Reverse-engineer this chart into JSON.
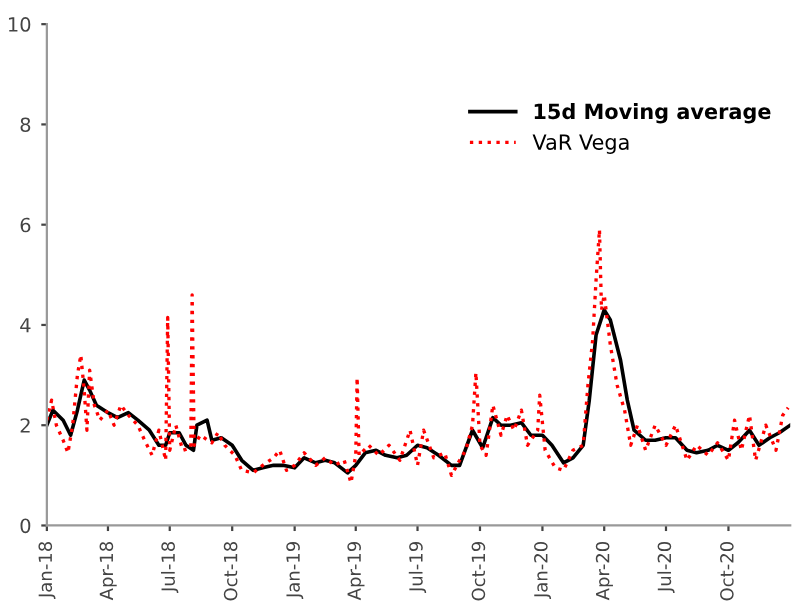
{
  "chart_data": {
    "type": "line",
    "xlim": [
      "2018-01-01",
      "2020-12-31"
    ],
    "xticks": [
      {
        "value": "2018-01-01",
        "label": "Jan-18"
      },
      {
        "value": "2018-04-01",
        "label": "Apr-18"
      },
      {
        "value": "2018-07-01",
        "label": "Jul-18"
      },
      {
        "value": "2018-10-01",
        "label": "Oct-18"
      },
      {
        "value": "2019-01-01",
        "label": "Jan-19"
      },
      {
        "value": "2019-04-01",
        "label": "Apr-19"
      },
      {
        "value": "2019-07-01",
        "label": "Jul-19"
      },
      {
        "value": "2019-10-01",
        "label": "Oct-19"
      },
      {
        "value": "2020-01-01",
        "label": "Jan-20"
      },
      {
        "value": "2020-04-01",
        "label": "Apr-20"
      },
      {
        "value": "2020-07-01",
        "label": "Jul-20"
      },
      {
        "value": "2020-10-01",
        "label": "Oct-20"
      }
    ],
    "ylim": [
      0,
      10
    ],
    "yticks": [
      0,
      2,
      4,
      6,
      8,
      10
    ],
    "grid": false,
    "legend": "top right",
    "series": [
      {
        "name": "15d Moving average",
        "color": "#000000",
        "line_style": "solid",
        "x": [
          "2018-01-01",
          "2018-01-10",
          "2018-01-25",
          "2018-02-05",
          "2018-02-15",
          "2018-02-25",
          "2018-03-05",
          "2018-03-15",
          "2018-04-01",
          "2018-04-15",
          "2018-05-01",
          "2018-05-15",
          "2018-06-01",
          "2018-06-15",
          "2018-06-25",
          "2018-07-01",
          "2018-07-15",
          "2018-07-25",
          "2018-08-05",
          "2018-08-10",
          "2018-08-25",
          "2018-09-01",
          "2018-09-15",
          "2018-10-01",
          "2018-10-15",
          "2018-11-01",
          "2018-11-15",
          "2018-12-01",
          "2018-12-15",
          "2019-01-01",
          "2019-01-15",
          "2019-02-01",
          "2019-02-15",
          "2019-03-01",
          "2019-03-20",
          "2019-04-01",
          "2019-04-15",
          "2019-05-01",
          "2019-05-15",
          "2019-06-01",
          "2019-06-15",
          "2019-07-01",
          "2019-07-15",
          "2019-08-01",
          "2019-08-20",
          "2019-09-01",
          "2019-09-20",
          "2019-10-05",
          "2019-10-20",
          "2019-11-01",
          "2019-11-15",
          "2019-12-01",
          "2019-12-15",
          "2020-01-01",
          "2020-01-15",
          "2020-02-01",
          "2020-02-15",
          "2020-03-01",
          "2020-03-10",
          "2020-03-20",
          "2020-04-01",
          "2020-04-10",
          "2020-04-25",
          "2020-05-05",
          "2020-05-15",
          "2020-06-01",
          "2020-06-15",
          "2020-07-01",
          "2020-07-15",
          "2020-08-01",
          "2020-08-15",
          "2020-09-01",
          "2020-09-15",
          "2020-10-01",
          "2020-10-15",
          "2020-11-01",
          "2020-11-15",
          "2020-12-01",
          "2020-12-15",
          "2020-12-31"
        ],
        "values": [
          2.0,
          2.3,
          2.1,
          1.8,
          2.3,
          2.9,
          2.7,
          2.4,
          2.25,
          2.15,
          2.25,
          2.1,
          1.9,
          1.6,
          1.6,
          1.85,
          1.85,
          1.6,
          1.5,
          2.0,
          2.1,
          1.7,
          1.75,
          1.6,
          1.3,
          1.1,
          1.15,
          1.2,
          1.2,
          1.15,
          1.35,
          1.25,
          1.3,
          1.25,
          1.05,
          1.2,
          1.45,
          1.5,
          1.4,
          1.35,
          1.4,
          1.6,
          1.55,
          1.4,
          1.2,
          1.2,
          1.9,
          1.55,
          2.15,
          2.0,
          2.0,
          2.05,
          1.8,
          1.8,
          1.6,
          1.25,
          1.35,
          1.6,
          2.5,
          3.8,
          4.3,
          4.1,
          3.3,
          2.5,
          1.9,
          1.7,
          1.7,
          1.75,
          1.75,
          1.5,
          1.45,
          1.5,
          1.6,
          1.5,
          1.65,
          1.9,
          1.6,
          1.75,
          1.85,
          2.0
        ]
      },
      {
        "name": "VaR Vega",
        "color": "#ff0000",
        "line_style": "dotted",
        "x": [
          "2018-01-01",
          "2018-01-08",
          "2018-01-15",
          "2018-01-25",
          "2018-02-01",
          "2018-02-08",
          "2018-02-15",
          "2018-02-20",
          "2018-02-25",
          "2018-03-01",
          "2018-03-05",
          "2018-03-12",
          "2018-03-20",
          "2018-04-01",
          "2018-04-10",
          "2018-04-20",
          "2018-05-01",
          "2018-05-15",
          "2018-05-25",
          "2018-06-05",
          "2018-06-15",
          "2018-06-25",
          "2018-06-28",
          "2018-07-01",
          "2018-07-10",
          "2018-07-20",
          "2018-08-01",
          "2018-08-03",
          "2018-08-06",
          "2018-08-15",
          "2018-09-01",
          "2018-09-10",
          "2018-09-20",
          "2018-10-05",
          "2018-10-15",
          "2018-11-01",
          "2018-11-15",
          "2018-12-01",
          "2018-12-10",
          "2018-12-20",
          "2019-01-01",
          "2019-01-15",
          "2019-02-01",
          "2019-02-15",
          "2019-03-01",
          "2019-03-15",
          "2019-03-25",
          "2019-04-01",
          "2019-04-03",
          "2019-04-06",
          "2019-04-20",
          "2019-05-05",
          "2019-05-20",
          "2019-06-05",
          "2019-06-20",
          "2019-07-01",
          "2019-07-10",
          "2019-07-25",
          "2019-08-10",
          "2019-08-20",
          "2019-09-01",
          "2019-09-10",
          "2019-09-20",
          "2019-09-25",
          "2019-10-01",
          "2019-10-10",
          "2019-10-20",
          "2019-11-01",
          "2019-11-10",
          "2019-11-20",
          "2019-12-01",
          "2019-12-10",
          "2019-12-25",
          "2019-12-28",
          "2020-01-05",
          "2020-01-20",
          "2020-02-01",
          "2020-02-15",
          "2020-03-01",
          "2020-03-08",
          "2020-03-15",
          "2020-03-20",
          "2020-03-25",
          "2020-03-28",
          "2020-04-01",
          "2020-04-10",
          "2020-04-20",
          "2020-05-01",
          "2020-05-10",
          "2020-05-20",
          "2020-06-01",
          "2020-06-15",
          "2020-07-01",
          "2020-07-15",
          "2020-08-01",
          "2020-08-15",
          "2020-09-01",
          "2020-09-15",
          "2020-10-01",
          "2020-10-10",
          "2020-10-20",
          "2020-11-01",
          "2020-11-10",
          "2020-11-25",
          "2020-12-10",
          "2020-12-20",
          "2020-12-28"
        ],
        "values": [
          2.1,
          2.5,
          2.0,
          1.7,
          1.45,
          2.0,
          3.0,
          3.4,
          2.7,
          1.9,
          3.1,
          2.4,
          2.1,
          2.3,
          2.0,
          2.4,
          2.2,
          2.0,
          1.7,
          1.4,
          1.9,
          1.3,
          4.15,
          1.5,
          2.0,
          1.5,
          1.55,
          4.6,
          1.6,
          1.8,
          1.65,
          1.85,
          1.6,
          1.4,
          1.1,
          1.05,
          1.2,
          1.35,
          1.5,
          1.1,
          1.2,
          1.45,
          1.2,
          1.35,
          1.2,
          1.3,
          0.85,
          1.4,
          2.95,
          1.4,
          1.6,
          1.4,
          1.6,
          1.3,
          1.9,
          1.2,
          1.9,
          1.35,
          1.45,
          1.0,
          1.3,
          1.5,
          2.0,
          3.05,
          1.6,
          1.4,
          2.4,
          1.8,
          2.2,
          1.9,
          2.3,
          1.6,
          1.9,
          2.6,
          1.5,
          1.15,
          1.1,
          1.5,
          1.6,
          2.8,
          3.7,
          4.9,
          5.9,
          4.3,
          4.6,
          3.6,
          2.8,
          2.3,
          1.6,
          2.0,
          1.5,
          2.0,
          1.6,
          2.0,
          1.3,
          1.6,
          1.4,
          1.65,
          1.3,
          2.1,
          1.5,
          2.2,
          1.3,
          2.0,
          1.5,
          2.2,
          2.35
        ]
      }
    ]
  }
}
